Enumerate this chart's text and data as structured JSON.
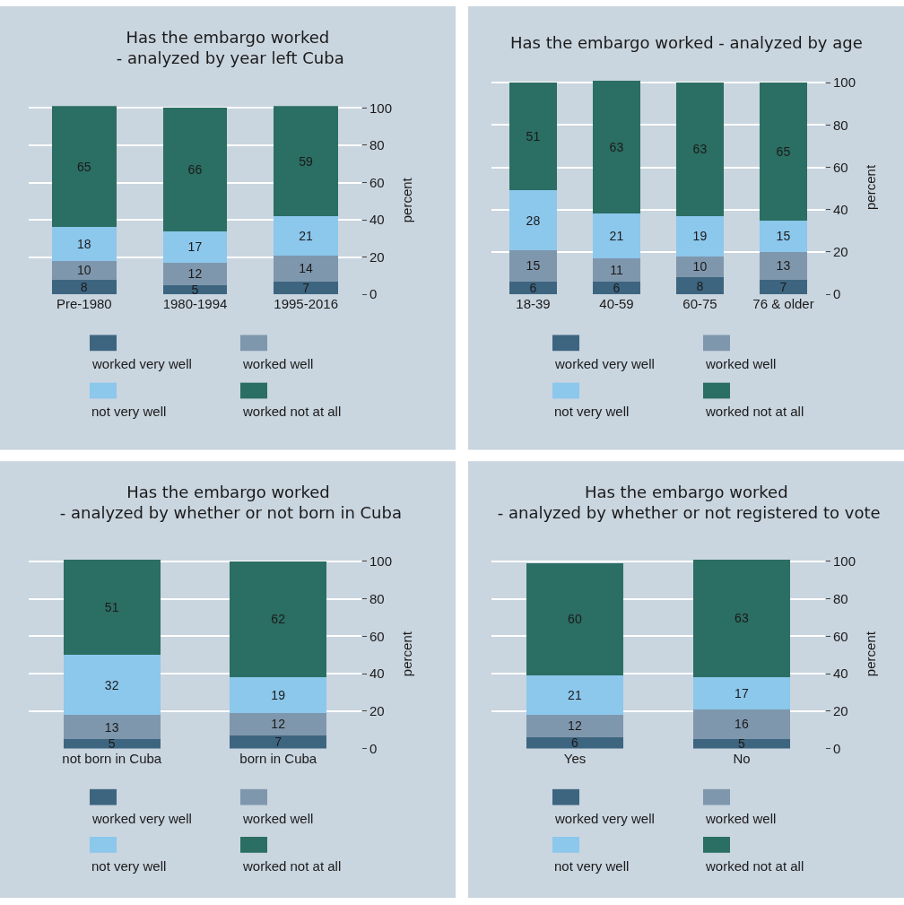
{
  "chart_data": [
    {
      "type": "bar",
      "stacked": true,
      "title": "Has the embargo worked\n - analyzed by year left Cuba",
      "categories": [
        "Pre-1980",
        "1980-1994",
        "1995-2016"
      ],
      "series": [
        {
          "name": "worked very well",
          "color": "#3e6580",
          "values": [
            8,
            5,
            7
          ]
        },
        {
          "name": "worked well",
          "color": "#7f97ad",
          "values": [
            10,
            12,
            14
          ]
        },
        {
          "name": "not very well",
          "color": "#8cc7ec",
          "values": [
            18,
            17,
            21
          ]
        },
        {
          "name": "worked not at all",
          "color": "#2b6e63",
          "values": [
            65,
            66,
            59
          ]
        }
      ],
      "ylabel": "percent",
      "ylim": [
        0,
        101
      ],
      "yticks": [
        0,
        20,
        40,
        60,
        80,
        100
      ],
      "grid": "y",
      "legend": "bottom",
      "data_labels": true
    },
    {
      "type": "bar",
      "stacked": true,
      "title": "Has the embargo worked - analyzed by age",
      "categories": [
        "18-39",
        "40-59",
        "60-75",
        "76 & older"
      ],
      "series": [
        {
          "name": "worked very well",
          "color": "#3e6580",
          "values": [
            6,
            6,
            8,
            7
          ]
        },
        {
          "name": "worked well",
          "color": "#7f97ad",
          "values": [
            15,
            11,
            10,
            13
          ]
        },
        {
          "name": "not very well",
          "color": "#8cc7ec",
          "values": [
            28,
            21,
            19,
            15
          ]
        },
        {
          "name": "worked not at all",
          "color": "#2b6e63",
          "values": [
            51,
            63,
            63,
            65
          ]
        }
      ],
      "ylabel": "percent",
      "ylim": [
        0,
        101
      ],
      "yticks": [
        0,
        20,
        40,
        60,
        80,
        100
      ],
      "grid": "y",
      "legend": "bottom",
      "data_labels": true
    },
    {
      "type": "bar",
      "stacked": true,
      "title": "Has the embargo worked\n - analyzed by whether or not born in Cuba",
      "categories": [
        "not born in Cuba",
        "born in Cuba"
      ],
      "series": [
        {
          "name": "worked very well",
          "color": "#3e6580",
          "values": [
            5,
            7
          ]
        },
        {
          "name": "worked well",
          "color": "#7f97ad",
          "values": [
            13,
            12
          ]
        },
        {
          "name": "not very well",
          "color": "#8cc7ec",
          "values": [
            32,
            19
          ]
        },
        {
          "name": "worked not at all",
          "color": "#2b6e63",
          "values": [
            51,
            62
          ]
        }
      ],
      "ylabel": "percent",
      "ylim": [
        0,
        101
      ],
      "yticks": [
        0,
        20,
        40,
        60,
        80,
        100
      ],
      "grid": "y",
      "legend": "bottom",
      "data_labels": true
    },
    {
      "type": "bar",
      "stacked": true,
      "title": "Has the embargo worked\n - analyzed by whether or not registered to vote",
      "categories": [
        "Yes",
        "No"
      ],
      "series": [
        {
          "name": "worked very well",
          "color": "#3e6580",
          "values": [
            6,
            5
          ]
        },
        {
          "name": "worked well",
          "color": "#7f97ad",
          "values": [
            12,
            16
          ]
        },
        {
          "name": "not very well",
          "color": "#8cc7ec",
          "values": [
            21,
            17
          ]
        },
        {
          "name": "worked not at all",
          "color": "#2b6e63",
          "values": [
            60,
            63
          ]
        }
      ],
      "ylabel": "percent",
      "ylim": [
        0,
        101
      ],
      "yticks": [
        0,
        20,
        40,
        60,
        80,
        100
      ],
      "grid": "y",
      "legend": "bottom",
      "data_labels": true
    }
  ]
}
